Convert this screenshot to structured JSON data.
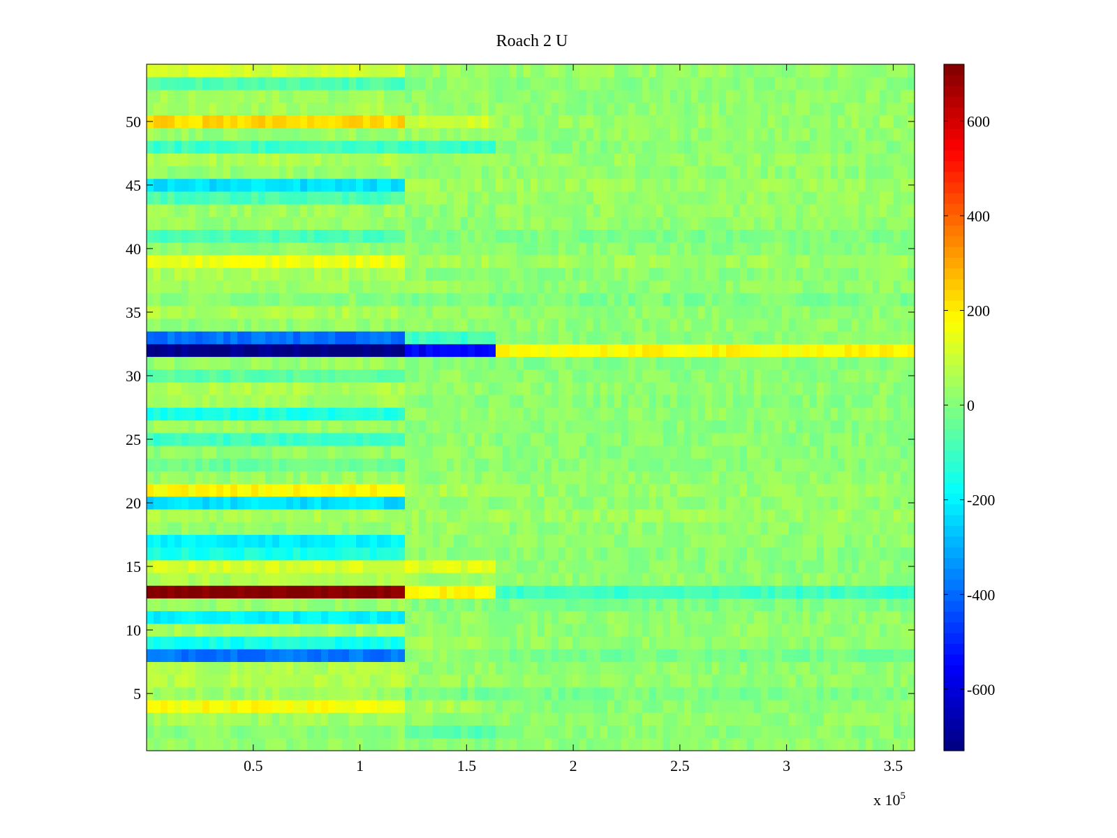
{
  "chart_data": {
    "type": "heatmap",
    "title": "Roach 2 U",
    "colormap": "jet",
    "xlim": [
      0,
      360000
    ],
    "ylim": [
      0.5,
      54.5
    ],
    "clim": [
      -730,
      720
    ],
    "x_tick_values": [
      50000,
      100000,
      150000,
      200000,
      250000,
      300000,
      350000
    ],
    "x_tick_labels": [
      "0.5",
      "1",
      "1.5",
      "2",
      "2.5",
      "3",
      "3.5"
    ],
    "x_exponent_label": "x 10",
    "x_exponent_power": "5",
    "y_ticks": [
      5,
      10,
      15,
      20,
      25,
      30,
      35,
      40,
      45,
      50
    ],
    "colorbar_ticks": [
      -600,
      -400,
      -200,
      0,
      200,
      400,
      600
    ],
    "segments_x": [
      [
        0,
        120000
      ],
      [
        120000,
        165000
      ],
      [
        165000,
        360000
      ]
    ],
    "row_levels": {
      "1": [
        20,
        10,
        20
      ],
      "2": [
        10,
        -60,
        10
      ],
      "3": [
        40,
        20,
        20
      ],
      "4": [
        170,
        60,
        10
      ],
      "5": [
        40,
        -20,
        -10
      ],
      "6": [
        70,
        30,
        20
      ],
      "7": [
        60,
        30,
        20
      ],
      "8": [
        -380,
        20,
        -20
      ],
      "9": [
        -160,
        40,
        20
      ],
      "10": [
        50,
        20,
        20
      ],
      "11": [
        -200,
        20,
        20
      ],
      "12": [
        30,
        10,
        -10
      ],
      "13": [
        720,
        180,
        -100
      ],
      "14": [
        60,
        40,
        20
      ],
      "15": [
        120,
        130,
        10
      ],
      "16": [
        -150,
        10,
        10
      ],
      "17": [
        -200,
        20,
        20
      ],
      "18": [
        30,
        30,
        20
      ],
      "19": [
        60,
        40,
        40
      ],
      "20": [
        -230,
        20,
        20
      ],
      "21": [
        180,
        60,
        30
      ],
      "22": [
        30,
        20,
        20
      ],
      "23": [
        -40,
        10,
        10
      ],
      "24": [
        20,
        20,
        10
      ],
      "25": [
        -100,
        20,
        10
      ],
      "26": [
        30,
        10,
        10
      ],
      "27": [
        -150,
        20,
        20
      ],
      "28": [
        40,
        10,
        10
      ],
      "29": [
        60,
        20,
        20
      ],
      "30": [
        -60,
        20,
        10
      ],
      "31": [
        30,
        10,
        0
      ],
      "32": [
        -720,
        -560,
        180
      ],
      "33": [
        -390,
        -100,
        10
      ],
      "34": [
        20,
        20,
        20
      ],
      "35": [
        60,
        30,
        20
      ],
      "36": [
        10,
        -20,
        -10
      ],
      "37": [
        40,
        30,
        20
      ],
      "38": [
        60,
        10,
        10
      ],
      "39": [
        150,
        50,
        40
      ],
      "40": [
        20,
        10,
        10
      ],
      "41": [
        -80,
        0,
        -10
      ],
      "42": [
        30,
        10,
        20
      ],
      "43": [
        40,
        20,
        30
      ],
      "44": [
        -80,
        30,
        30
      ],
      "45": [
        -230,
        40,
        40
      ],
      "46": [
        30,
        20,
        20
      ],
      "47": [
        60,
        30,
        30
      ],
      "48": [
        -100,
        -110,
        10
      ],
      "49": [
        30,
        30,
        20
      ],
      "50": [
        230,
        100,
        30
      ],
      "51": [
        50,
        30,
        20
      ],
      "52": [
        40,
        20,
        20
      ],
      "53": [
        -80,
        10,
        10
      ],
      "54": [
        110,
        30,
        30
      ]
    }
  }
}
